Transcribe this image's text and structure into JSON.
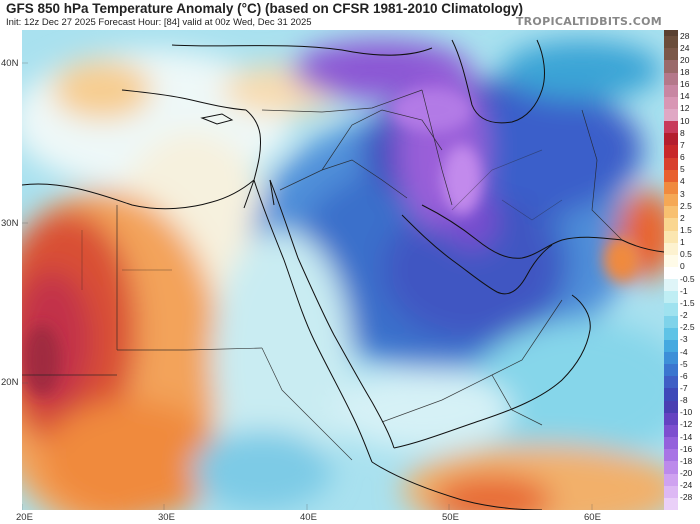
{
  "header": {
    "title": "GFS 850 hPa Temperature Anomaly (°C) (based on CFSR 1981-2010 Climatology)",
    "subtitle": "Init: 12z Dec 27 2025   Forecast Hour: [84]   valid at 00z Wed, Dec 31 2025",
    "brand": "TROPICALTIDBITS.COM"
  },
  "axes": {
    "lat_labels": [
      "40N",
      "30N",
      "20N"
    ],
    "lon_labels": [
      "20E",
      "30E",
      "40E",
      "50E",
      "60E"
    ]
  },
  "colorbar": {
    "labels": [
      "28",
      "24",
      "20",
      "18",
      "16",
      "14",
      "12",
      "10",
      "8",
      "7",
      "6",
      "5",
      "4",
      "3",
      "2.5",
      "2",
      "1.5",
      "1",
      "0.5",
      "0",
      "-0.5",
      "-1",
      "-1.5",
      "-2",
      "-2.5",
      "-3",
      "-4",
      "-5",
      "-6",
      "-7",
      "-8",
      "-10",
      "-12",
      "-14",
      "-16",
      "-18",
      "-20",
      "-24",
      "-28"
    ],
    "colors": [
      "#6b4d3a",
      "#7b5848",
      "#9a6a6a",
      "#b4788a",
      "#c886a2",
      "#d896b4",
      "#e0a8c4",
      "#c83a5a",
      "#b41e2e",
      "#c8282a",
      "#d8402e",
      "#e8602e",
      "#f08a3e",
      "#f5a855",
      "#f8c070",
      "#fad690",
      "#fbe6b0",
      "#fdf2d0",
      "#fffbe8",
      "#ffffff",
      "#dff5f8",
      "#bfeef4",
      "#9fe2ef",
      "#7fd3ea",
      "#5fc3e6",
      "#45a9e0",
      "#3d8fd8",
      "#3b76cf",
      "#3f5fc5",
      "#3e49b9",
      "#4a3fb2",
      "#6443c1",
      "#7d4fcf",
      "#9461dc",
      "#a874e5",
      "#bc8aeb",
      "#cfa2f0",
      "#ddb8f4",
      "#ead0f8"
    ],
    "top_color": "#5a4030"
  }
}
